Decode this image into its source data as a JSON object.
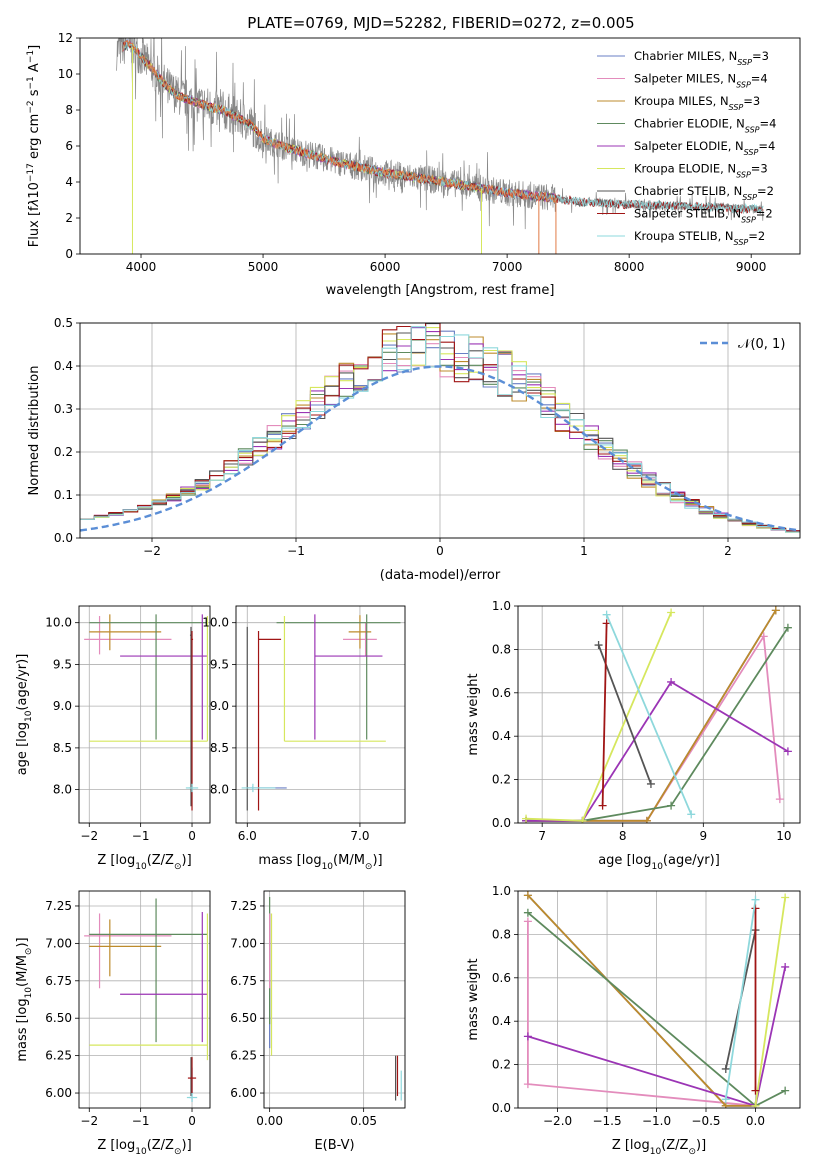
{
  "figure": {
    "title": "PLATE=0769, MJD=52282, FIBERID=0272, z=0.005"
  },
  "series_colors": {
    "Chabrier MILES": "#6a7fc4",
    "Salpeter MILES": "#e38cbc",
    "Kroupa MILES": "#bd8b2c",
    "Chabrier ELODIE": "#5e8a5e",
    "Salpeter ELODIE": "#9b35b5",
    "Kroupa ELODIE": "#d6e75e",
    "Chabrier STELIB": "#555555",
    "Salpeter STELIB": "#a01515",
    "Kroupa STELIB": "#8ed8dc",
    "data": "#888888",
    "orange_model": "#e07a46",
    "normal": "#5b8ed6"
  },
  "chart_data": [
    {
      "id": "spectrum",
      "type": "line",
      "title": "PLATE=0769, MJD=52282, FIBERID=0272, z=0.005",
      "xlabel": "wavelength [Angstrom, rest frame]",
      "ylabel_parts": [
        "Flux [f",
        "λ",
        "10",
        "−17",
        " erg cm",
        "−2",
        " s",
        "−1",
        " A",
        "−1",
        "]"
      ],
      "xlim": [
        3500,
        9400
      ],
      "ylim": [
        0,
        12
      ],
      "xticks": [
        "4000",
        "5000",
        "6000",
        "7000",
        "8000",
        "9000"
      ],
      "yticks": [
        "0",
        "2",
        "4",
        "6",
        "8",
        "10",
        "12"
      ],
      "legend_position": "top-right",
      "legend": [
        {
          "name": "Chabrier MILES, N",
          "sub": "SSP",
          "suffix": "=3",
          "color": "#6a7fc4"
        },
        {
          "name": "Salpeter MILES, N",
          "sub": "SSP",
          "suffix": "=4",
          "color": "#e38cbc"
        },
        {
          "name": "Kroupa MILES, N",
          "sub": "SSP",
          "suffix": "=3",
          "color": "#bd8b2c"
        },
        {
          "name": "Chabrier ELODIE, N",
          "sub": "SSP",
          "suffix": "=4",
          "color": "#5e8a5e"
        },
        {
          "name": "Salpeter ELODIE, N",
          "sub": "SSP",
          "suffix": "=4",
          "color": "#9b35b5"
        },
        {
          "name": "Kroupa ELODIE, N",
          "sub": "SSP",
          "suffix": "=3",
          "color": "#d6e75e"
        },
        {
          "name": "Chabrier STELIB, N",
          "sub": "SSP",
          "suffix": "=2",
          "color": "#555555"
        },
        {
          "name": "Salpeter STELIB, N",
          "sub": "SSP",
          "suffix": "=2",
          "color": "#a01515"
        },
        {
          "name": "Kroupa STELIB, N",
          "sub": "SSP",
          "suffix": "=2",
          "color": "#8ed8dc"
        }
      ],
      "continuum_points": [
        [
          3800,
          11.3
        ],
        [
          3900,
          11.7
        ],
        [
          4000,
          11.0
        ],
        [
          4100,
          10.2
        ],
        [
          4200,
          9.4
        ],
        [
          4300,
          8.8
        ],
        [
          4500,
          8.3
        ],
        [
          4700,
          7.9
        ],
        [
          4900,
          7.2
        ],
        [
          5000,
          6.4
        ],
        [
          5200,
          5.9
        ],
        [
          5500,
          5.3
        ],
        [
          5800,
          4.8
        ],
        [
          6000,
          4.5
        ],
        [
          6500,
          4.0
        ],
        [
          7000,
          3.4
        ],
        [
          7400,
          3.1
        ],
        [
          7600,
          2.9
        ],
        [
          8000,
          2.75
        ],
        [
          8500,
          2.65
        ],
        [
          9000,
          2.5
        ],
        [
          9100,
          2.45
        ]
      ]
    },
    {
      "id": "residuals",
      "type": "histogram",
      "xlabel": "(data-model)/error",
      "ylabel": "Normed distribution",
      "xlim": [
        -2.5,
        2.5
      ],
      "ylim": [
        0,
        0.5
      ],
      "xticks": [
        "−2",
        "−1",
        "0",
        "1",
        "2"
      ],
      "yticks": [
        "0.0",
        "0.1",
        "0.2",
        "0.3",
        "0.4",
        "0.5"
      ],
      "legend_position": "top-right",
      "legend": [
        {
          "name": "𝒩(0, 1)",
          "color": "#5b8ed6"
        }
      ],
      "bin_width": 0.1
    },
    {
      "id": "age-vs-Z",
      "type": "errorbar",
      "xlabel_parts": [
        "Z [log",
        "10",
        "(Z/Z",
        "⊙",
        ")]"
      ],
      "ylabel_parts": [
        "age  [log",
        "10",
        "(age/yr)]"
      ],
      "xlim": [
        -2.2,
        0.35
      ],
      "ylim": [
        7.6,
        10.2
      ],
      "xticks": [
        "−2",
        "−1",
        "0"
      ],
      "yticks": [
        "8.0",
        "8.5",
        "9.0",
        "9.5",
        "10.0"
      ],
      "points": [
        {
          "series": "Chabrier MILES",
          "x": 0.0,
          "xerr": [
            0.05,
            0.0
          ],
          "y": 8.02,
          "yerr": [
            0.02,
            0.02
          ]
        },
        {
          "series": "Salpeter MILES",
          "x": -1.8,
          "xerr": [
            0.3,
            1.4
          ],
          "y": 9.8,
          "yerr": [
            0.18,
            0.28
          ]
        },
        {
          "series": "Kroupa MILES",
          "x": -1.6,
          "xerr": [
            0.4,
            1.0
          ],
          "y": 9.89,
          "yerr": [
            0.22,
            0.21
          ]
        },
        {
          "series": "Chabrier ELODIE",
          "x": -0.7,
          "xerr": [
            1.3,
            1.0
          ],
          "y": 10.0,
          "yerr": [
            1.4,
            0.1
          ]
        },
        {
          "series": "Salpeter ELODIE",
          "x": 0.2,
          "xerr": [
            1.6,
            0.1
          ],
          "y": 9.6,
          "yerr": [
            1.0,
            0.5
          ]
        },
        {
          "series": "Kroupa ELODIE",
          "x": 0.3,
          "xerr": [
            2.3,
            0.0
          ],
          "y": 8.58,
          "yerr": [
            0.0,
            1.5
          ]
        },
        {
          "series": "Chabrier STELIB",
          "x": -0.02,
          "xerr": [
            0.02,
            0.02
          ],
          "y": 9.85,
          "yerr": [
            2.05,
            0.1
          ]
        },
        {
          "series": "Salpeter STELIB",
          "x": 0.0,
          "xerr": [
            0.02,
            0.02
          ],
          "y": 9.8,
          "yerr": [
            2.05,
            0.1
          ]
        },
        {
          "series": "Kroupa STELIB",
          "x": 0.0,
          "xerr": [
            0.12,
            0.12
          ],
          "y": 8.02,
          "yerr": [
            0.05,
            0.05
          ]
        }
      ]
    },
    {
      "id": "age-vs-mass",
      "type": "errorbar",
      "xlabel_parts": [
        "mass [log",
        "10",
        "(M/M",
        "⊙",
        ")]"
      ],
      "ylabel_parts": [],
      "xlim": [
        5.9,
        7.4
      ],
      "ylim": [
        7.6,
        10.2
      ],
      "xticks": [
        "6.0",
        "7.0"
      ],
      "yticks": [
        "8.0",
        "8.5",
        "9.0",
        "9.5",
        "10.0"
      ],
      "points": [
        {
          "series": "Chabrier MILES",
          "x": 6.05,
          "xerr": [
            0.05,
            0.3
          ],
          "y": 8.02,
          "yerr": [
            0.02,
            0.02
          ]
        },
        {
          "series": "Salpeter MILES",
          "x": 7.05,
          "xerr": [
            0.2,
            0.1
          ],
          "y": 9.8,
          "yerr": [
            0.2,
            0.2
          ]
        },
        {
          "series": "Kroupa MILES",
          "x": 7.0,
          "xerr": [
            0.1,
            0.1
          ],
          "y": 9.89,
          "yerr": [
            0.2,
            0.2
          ]
        },
        {
          "series": "Chabrier ELODIE",
          "x": 7.06,
          "xerr": [
            0.8,
            0.3
          ],
          "y": 10.0,
          "yerr": [
            1.4,
            0.1
          ]
        },
        {
          "series": "Salpeter ELODIE",
          "x": 6.6,
          "xerr": [
            0.0,
            0.6
          ],
          "y": 9.6,
          "yerr": [
            1.0,
            0.5
          ]
        },
        {
          "series": "Kroupa ELODIE",
          "x": 6.33,
          "xerr": [
            0.0,
            0.9
          ],
          "y": 8.58,
          "yerr": [
            0.0,
            1.5
          ]
        },
        {
          "series": "Chabrier STELIB",
          "x": 6.0,
          "xerr": [
            0.0,
            0.0
          ],
          "y": 9.85,
          "yerr": [
            2.1,
            0.1
          ]
        },
        {
          "series": "Salpeter STELIB",
          "x": 6.1,
          "xerr": [
            0.0,
            0.2
          ],
          "y": 9.8,
          "yerr": [
            2.05,
            0.1
          ]
        },
        {
          "series": "Kroupa STELIB",
          "x": 6.05,
          "xerr": [
            0.1,
            0.2
          ],
          "y": 8.02,
          "yerr": [
            0.05,
            0.05
          ]
        }
      ]
    },
    {
      "id": "weight-vs-age",
      "type": "line",
      "xlabel_parts": [
        "age  [log",
        "10",
        "(age/yr)]"
      ],
      "ylabel": "mass weight",
      "xlim": [
        6.7,
        10.2
      ],
      "ylim": [
        0,
        1
      ],
      "xticks": [
        "7",
        "8",
        "9",
        "10"
      ],
      "yticks": [
        "0.0",
        "0.2",
        "0.4",
        "0.6",
        "0.8",
        "1.0"
      ],
      "series": [
        {
          "name": "Chabrier MILES",
          "x": [
            6.8,
            8.3,
            9.9
          ],
          "y": [
            0.01,
            0.01,
            0.98
          ]
        },
        {
          "name": "Salpeter MILES",
          "x": [
            6.8,
            8.3,
            9.75,
            9.95
          ],
          "y": [
            0.01,
            0.01,
            0.86,
            0.11
          ]
        },
        {
          "name": "Kroupa MILES",
          "x": [
            6.8,
            8.3,
            9.9
          ],
          "y": [
            0.01,
            0.01,
            0.98
          ]
        },
        {
          "name": "Chabrier ELODIE",
          "x": [
            6.8,
            7.5,
            8.6,
            10.05
          ],
          "y": [
            0.01,
            0.01,
            0.08,
            0.9
          ]
        },
        {
          "name": "Salpeter ELODIE",
          "x": [
            6.8,
            7.5,
            8.6,
            10.05
          ],
          "y": [
            0.01,
            0.01,
            0.65,
            0.33
          ]
        },
        {
          "name": "Kroupa ELODIE",
          "x": [
            6.8,
            7.5,
            8.6
          ],
          "y": [
            0.02,
            0.01,
            0.97
          ]
        },
        {
          "name": "Chabrier STELIB",
          "x": [
            7.7,
            8.35
          ],
          "y": [
            0.82,
            0.18
          ]
        },
        {
          "name": "Salpeter STELIB",
          "x": [
            7.75,
            7.8
          ],
          "y": [
            0.08,
            0.92
          ]
        },
        {
          "name": "Kroupa STELIB",
          "x": [
            7.8,
            8.85
          ],
          "y": [
            0.96,
            0.04
          ]
        }
      ]
    },
    {
      "id": "mass-vs-Z",
      "type": "errorbar",
      "xlabel_parts": [
        "Z [log",
        "10",
        "(Z/Z",
        "⊙",
        ")]"
      ],
      "ylabel_parts": [
        "mass [log",
        "10",
        "(M/M",
        "⊙",
        ")]"
      ],
      "xlim": [
        -2.2,
        0.35
      ],
      "ylim": [
        5.9,
        7.35
      ],
      "xticks": [
        "−2",
        "−1",
        "0"
      ],
      "yticks": [
        "6.00",
        "6.25",
        "6.50",
        "6.75",
        "7.00",
        "7.25"
      ],
      "points": [
        {
          "series": "Chabrier MILES",
          "x": 0.0,
          "xerr": [
            0.05,
            0.0
          ],
          "y": 5.97,
          "yerr": [
            0.03,
            0.2
          ]
        },
        {
          "series": "Salpeter MILES",
          "x": -1.8,
          "xerr": [
            0.3,
            1.4
          ],
          "y": 7.05,
          "yerr": [
            0.35,
            0.15
          ]
        },
        {
          "series": "Kroupa MILES",
          "x": -1.6,
          "xerr": [
            0.4,
            1.0
          ],
          "y": 6.98,
          "yerr": [
            0.2,
            0.18
          ]
        },
        {
          "series": "Chabrier ELODIE",
          "x": -0.7,
          "xerr": [
            1.3,
            1.0
          ],
          "y": 7.06,
          "yerr": [
            0.72,
            0.24
          ]
        },
        {
          "series": "Salpeter ELODIE",
          "x": 0.2,
          "xerr": [
            1.6,
            0.1
          ],
          "y": 6.66,
          "yerr": [
            0.32,
            0.55
          ]
        },
        {
          "series": "Kroupa ELODIE",
          "x": 0.3,
          "xerr": [
            2.3,
            0.0
          ],
          "y": 6.32,
          "yerr": [
            0.1,
            0.88
          ]
        },
        {
          "series": "Chabrier STELIB",
          "x": -0.02,
          "xerr": [
            0.02,
            0.02
          ],
          "y": 6.1,
          "yerr": [
            0.12,
            0.14
          ]
        },
        {
          "series": "Salpeter STELIB",
          "x": 0.0,
          "xerr": [
            0.08,
            0.08
          ],
          "y": 6.1,
          "yerr": [
            0.1,
            0.14
          ]
        },
        {
          "series": "Kroupa STELIB",
          "x": 0.0,
          "xerr": [
            0.1,
            0.1
          ],
          "y": 5.97,
          "yerr": [
            0.03,
            0.03
          ]
        }
      ]
    },
    {
      "id": "mass-vs-EBV",
      "type": "errorbar",
      "xlabel_parts": [
        "E(B-V)"
      ],
      "ylabel_parts": [],
      "xlim": [
        -0.003,
        0.072
      ],
      "ylim": [
        5.9,
        7.35
      ],
      "xticks": [
        "0.00",
        "0.05"
      ],
      "yticks": [
        "6.00",
        "6.25",
        "6.50",
        "6.75",
        "7.00",
        "7.25"
      ],
      "points": [
        {
          "series": "Chabrier MILES",
          "x": 0.0,
          "y": 7.0,
          "yerr": [
            0.7,
            0.2
          ]
        },
        {
          "series": "Chabrier ELODIE",
          "x": 0.0,
          "y": 7.06,
          "yerr": [
            0.6,
            0.25
          ]
        },
        {
          "series": "Kroupa ELODIE",
          "x": 0.001,
          "y": 6.75,
          "yerr": [
            0.5,
            0.45
          ]
        },
        {
          "series": "Salpeter MILES",
          "x": 0.0,
          "y": 7.0,
          "yerr": [
            0.3,
            0.2
          ]
        },
        {
          "series": "Chabrier STELIB",
          "x": 0.067,
          "y": 6.1,
          "yerr": [
            0.15,
            0.15
          ]
        },
        {
          "series": "Salpeter STELIB",
          "x": 0.068,
          "y": 6.1,
          "yerr": [
            0.12,
            0.15
          ]
        },
        {
          "series": "Kroupa STELIB",
          "x": 0.07,
          "y": 6.05,
          "yerr": [
            0.1,
            0.1
          ]
        }
      ]
    },
    {
      "id": "weight-vs-Z",
      "type": "line",
      "xlabel_parts": [
        "Z [log",
        "10",
        "(Z/Z",
        "⊙",
        ")]"
      ],
      "ylabel": "mass weight",
      "xlim": [
        -2.4,
        0.45
      ],
      "ylim": [
        0,
        1
      ],
      "xticks": [
        "−2.0",
        "−1.5",
        "−1.0",
        "−0.5",
        "0.0"
      ],
      "yticks": [
        "0.0",
        "0.2",
        "0.4",
        "0.6",
        "0.8",
        "1.0"
      ],
      "series": [
        {
          "name": "Chabrier MILES",
          "x": [
            -2.3,
            -0.3,
            0.0
          ],
          "y": [
            0.98,
            0.01,
            0.01
          ]
        },
        {
          "name": "Salpeter MILES",
          "x": [
            -2.3,
            -2.3,
            0.0
          ],
          "y": [
            0.86,
            0.11,
            0.01
          ]
        },
        {
          "name": "Kroupa MILES",
          "x": [
            -2.3,
            -0.3,
            0.0
          ],
          "y": [
            0.98,
            0.01,
            0.01
          ]
        },
        {
          "name": "Chabrier ELODIE",
          "x": [
            -2.3,
            0.0,
            0.3
          ],
          "y": [
            0.9,
            0.01,
            0.08
          ]
        },
        {
          "name": "Salpeter ELODIE",
          "x": [
            -2.3,
            0.0,
            0.3
          ],
          "y": [
            0.33,
            0.01,
            0.65
          ]
        },
        {
          "name": "Kroupa ELODIE",
          "x": [
            0.0,
            0.3
          ],
          "y": [
            0.01,
            0.97
          ]
        },
        {
          "name": "Chabrier STELIB",
          "x": [
            -0.3,
            0.0
          ],
          "y": [
            0.18,
            0.82
          ]
        },
        {
          "name": "Salpeter STELIB",
          "x": [
            0.0,
            0.0
          ],
          "y": [
            0.08,
            0.92
          ]
        },
        {
          "name": "Kroupa STELIB",
          "x": [
            -0.3,
            0.0
          ],
          "y": [
            0.04,
            0.96
          ]
        }
      ]
    }
  ]
}
